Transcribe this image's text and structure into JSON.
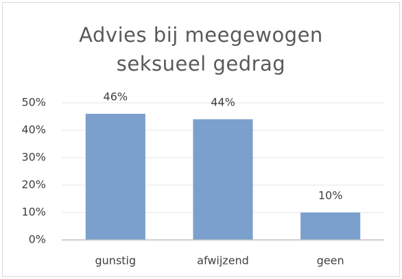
{
  "chart_data": {
    "type": "bar",
    "title": "Advies bij meegewogen seksueel gedrag",
    "categories": [
      "gunstig",
      "afwijzend",
      "geen"
    ],
    "values": [
      46,
      44,
      10
    ],
    "value_labels": [
      "46%",
      "44%",
      "10%"
    ],
    "color": "#7ba0cd",
    "ylim": [
      0,
      50
    ],
    "yticks": [
      {
        "value": 0,
        "label": "0%"
      },
      {
        "value": 10,
        "label": "10%"
      },
      {
        "value": 20,
        "label": "20%"
      },
      {
        "value": 30,
        "label": "30%"
      },
      {
        "value": 40,
        "label": "40%"
      },
      {
        "value": 50,
        "label": "50%"
      }
    ],
    "grid": true
  }
}
